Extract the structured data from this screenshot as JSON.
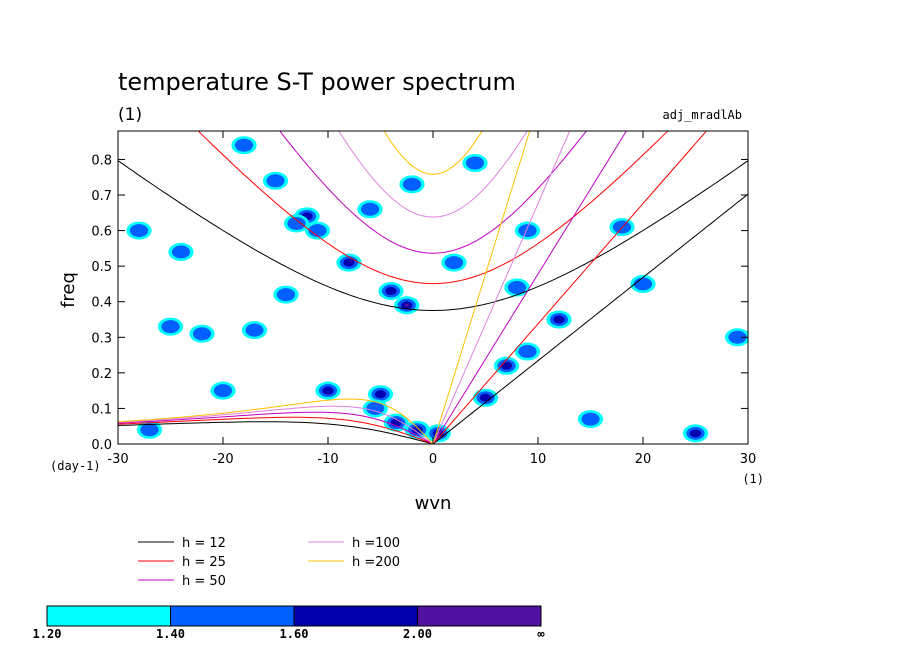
{
  "chart_data": {
    "type": "heatmap",
    "title": "temperature S-T power spectrum",
    "subtitle_left": "(1)",
    "subtitle_right": "adj_mradlAb",
    "xlabel": "wvn",
    "ylabel": "freq",
    "x_unit_label": "(1)",
    "y_unit_label": "(day-1)",
    "xlim": [
      -30,
      30
    ],
    "ylim": [
      0,
      0.88
    ],
    "x_ticks": [
      "-30",
      "-20",
      "-10",
      "0",
      "10",
      "20",
      "30"
    ],
    "y_ticks": [
      "0.0",
      "0.1",
      "0.2",
      "0.3",
      "0.4",
      "0.5",
      "0.6",
      "0.7",
      "0.8"
    ],
    "x_tick_values": [
      -30,
      -20,
      -10,
      0,
      10,
      20,
      30
    ],
    "y_tick_values": [
      0,
      0.1,
      0.2,
      0.3,
      0.4,
      0.5,
      0.6,
      0.7,
      0.8
    ],
    "dispersion_curves": [
      {
        "label": "h = 12",
        "h": 12,
        "color": "#000000"
      },
      {
        "label": "h = 25",
        "h": 25,
        "color": "#ff0000"
      },
      {
        "label": "h = 50",
        "h": 50,
        "color": "#c000c0"
      },
      {
        "label": "h =100",
        "h": 100,
        "color": "#e080e0"
      },
      {
        "label": "h =200",
        "h": 200,
        "color": "#ffc000"
      }
    ],
    "colorbar": {
      "levels": [
        "1.20",
        "1.40",
        "1.60",
        "2.00",
        "∞"
      ],
      "colors": [
        "#00ffff",
        "#0060ff",
        "#0000b0",
        "#5010a0"
      ]
    },
    "blobs": [
      {
        "x": 0.5,
        "y": 0.03,
        "level": 3
      },
      {
        "x": -1.5,
        "y": 0.04,
        "level": 2
      },
      {
        "x": -3.5,
        "y": 0.06,
        "level": 2
      },
      {
        "x": -5,
        "y": 0.14,
        "level": 2
      },
      {
        "x": -10,
        "y": 0.15,
        "level": 2
      },
      {
        "x": -5.5,
        "y": 0.1,
        "level": 1
      },
      {
        "x": -2.5,
        "y": 0.39,
        "level": 3
      },
      {
        "x": -4,
        "y": 0.43,
        "level": 2
      },
      {
        "x": -8,
        "y": 0.51,
        "level": 2
      },
      {
        "x": -11,
        "y": 0.6,
        "level": 1
      },
      {
        "x": -12,
        "y": 0.64,
        "level": 2
      },
      {
        "x": -13,
        "y": 0.62,
        "level": 1
      },
      {
        "x": -15,
        "y": 0.74,
        "level": 1
      },
      {
        "x": -18,
        "y": 0.84,
        "level": 1
      },
      {
        "x": 7,
        "y": 0.22,
        "level": 2
      },
      {
        "x": 5,
        "y": 0.13,
        "level": 2
      },
      {
        "x": 9,
        "y": 0.26,
        "level": 1
      },
      {
        "x": 12,
        "y": 0.35,
        "level": 2
      },
      {
        "x": 8,
        "y": 0.44,
        "level": 1
      },
      {
        "x": 25,
        "y": 0.03,
        "level": 2
      },
      {
        "x": -28,
        "y": 0.6,
        "level": 1
      },
      {
        "x": -24,
        "y": 0.54,
        "level": 1
      },
      {
        "x": -22,
        "y": 0.31,
        "level": 1
      },
      {
        "x": -25,
        "y": 0.33,
        "level": 1
      },
      {
        "x": -17,
        "y": 0.32,
        "level": 1
      },
      {
        "x": 2,
        "y": 0.51,
        "level": 1
      },
      {
        "x": 9,
        "y": 0.6,
        "level": 1
      },
      {
        "x": 18,
        "y": 0.61,
        "level": 1
      },
      {
        "x": -6,
        "y": 0.66,
        "level": 1
      },
      {
        "x": 15,
        "y": 0.07,
        "level": 1
      },
      {
        "x": 29,
        "y": 0.3,
        "level": 1
      },
      {
        "x": -27,
        "y": 0.04,
        "level": 1
      },
      {
        "x": -14,
        "y": 0.42,
        "level": 1
      },
      {
        "x": 4,
        "y": 0.79,
        "level": 1
      },
      {
        "x": -2,
        "y": 0.73,
        "level": 1
      },
      {
        "x": 20,
        "y": 0.45,
        "level": 1
      },
      {
        "x": -20,
        "y": 0.15,
        "level": 1
      }
    ]
  }
}
